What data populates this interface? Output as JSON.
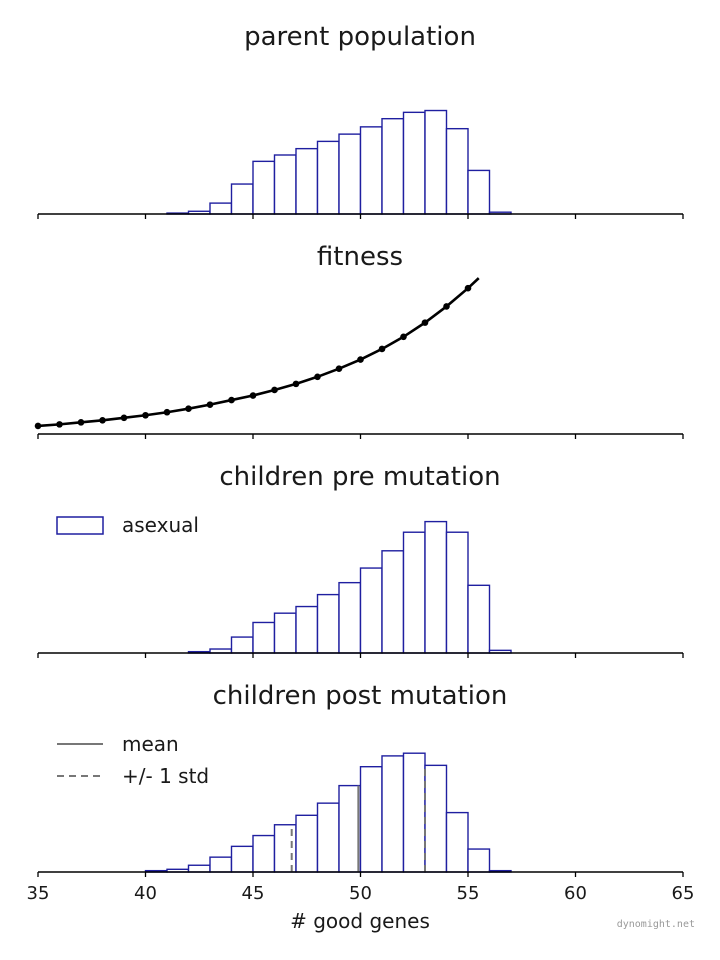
{
  "colors": {
    "bar_edge": "#1f1fa0",
    "fitness_line": "#000000",
    "mean_line": "#777777",
    "axis": "#000000"
  },
  "watermark": "dynomight.net",
  "chart_data": [
    {
      "type": "bar",
      "title": "parent population",
      "bin_width": 1,
      "x": [
        41,
        42,
        43,
        44,
        45,
        46,
        47,
        48,
        49,
        50,
        51,
        52,
        53,
        54,
        55,
        56
      ],
      "values": [
        0.01,
        0.03,
        0.12,
        0.33,
        0.58,
        0.65,
        0.72,
        0.8,
        0.88,
        0.96,
        1.05,
        1.12,
        1.14,
        0.94,
        0.48,
        0.02
      ],
      "xlim": [
        35,
        65
      ],
      "ylim": [
        0,
        1.3
      ]
    },
    {
      "type": "line",
      "title": "fitness",
      "x": [
        35,
        36,
        37,
        38,
        39,
        40,
        41,
        42,
        43,
        44,
        45,
        46,
        47,
        48,
        49,
        50,
        51,
        52,
        53,
        54,
        55
      ],
      "values": [
        0.16,
        0.19,
        0.23,
        0.27,
        0.32,
        0.37,
        0.43,
        0.5,
        0.58,
        0.67,
        0.76,
        0.87,
        0.99,
        1.13,
        1.29,
        1.47,
        1.68,
        1.92,
        2.2,
        2.52,
        2.88
      ],
      "curve_x_end": 55.5,
      "xlim": [
        35,
        65
      ],
      "ylim": [
        0,
        3.2
      ]
    },
    {
      "type": "bar",
      "title": "children pre mutation",
      "legend": [
        "asexual"
      ],
      "legend_position": "top-left",
      "bin_width": 1,
      "x": [
        42,
        43,
        44,
        45,
        46,
        47,
        48,
        49,
        50,
        51,
        52,
        53,
        54,
        55,
        56
      ],
      "values": [
        0.01,
        0.03,
        0.12,
        0.23,
        0.3,
        0.35,
        0.44,
        0.53,
        0.64,
        0.77,
        0.91,
        0.99,
        0.91,
        0.51,
        0.02
      ],
      "xlim": [
        35,
        65
      ],
      "ylim": [
        0,
        1.1
      ]
    },
    {
      "type": "bar",
      "title": "children post mutation",
      "xlabel": "# good genes",
      "legend": [
        "mean",
        "+/- 1 std"
      ],
      "legend_position": "top-left",
      "bin_width": 1,
      "x": [
        40,
        41,
        42,
        43,
        44,
        45,
        46,
        47,
        48,
        49,
        50,
        51,
        52,
        53,
        54,
        55,
        56
      ],
      "values": [
        0.01,
        0.02,
        0.05,
        0.11,
        0.19,
        0.27,
        0.35,
        0.42,
        0.51,
        0.64,
        0.78,
        0.86,
        0.88,
        0.79,
        0.44,
        0.17,
        0.01
      ],
      "mean": 49.9,
      "std": 3.1,
      "xlim": [
        35,
        65
      ],
      "ylim": [
        0,
        1.0
      ],
      "xticks": [
        35,
        40,
        45,
        50,
        55,
        60,
        65
      ]
    }
  ]
}
